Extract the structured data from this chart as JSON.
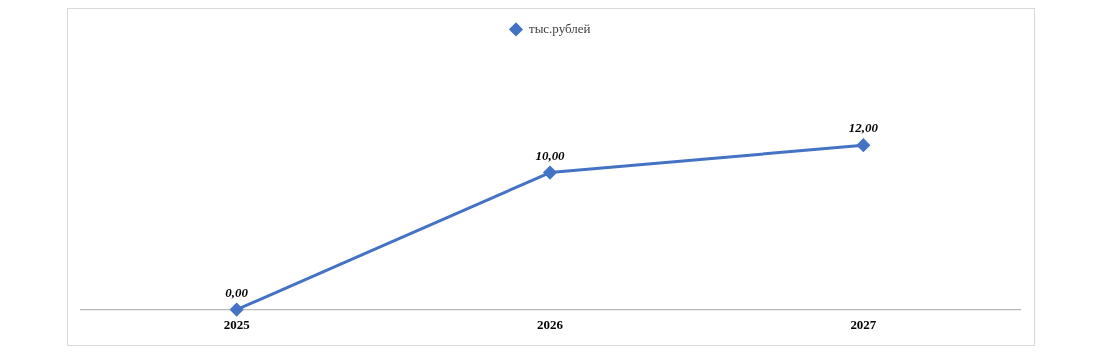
{
  "chart_data": {
    "type": "line",
    "categories": [
      "2025",
      "2026",
      "2027"
    ],
    "series": [
      {
        "name": "тыс.рублей",
        "color": "#4472c4",
        "values": [
          0,
          10,
          12
        ],
        "value_labels": [
          "0,00",
          "10,00",
          "12,00"
        ]
      }
    ],
    "data_labels": true,
    "legend": "top",
    "marker": "diamond",
    "grid": false,
    "tick_labels": "x"
  }
}
